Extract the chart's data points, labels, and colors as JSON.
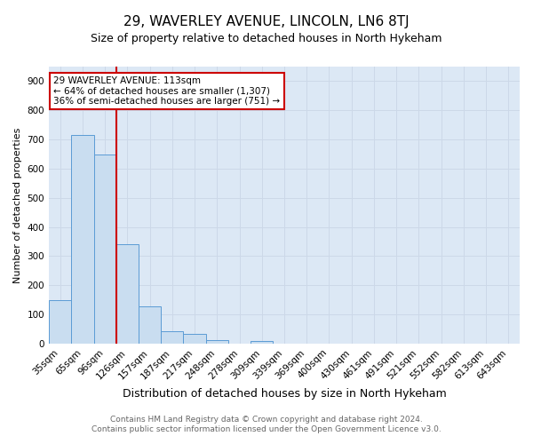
{
  "title1": "29, WAVERLEY AVENUE, LINCOLN, LN6 8TJ",
  "title2": "Size of property relative to detached houses in North Hykeham",
  "xlabel": "Distribution of detached houses by size in North Hykeham",
  "ylabel": "Number of detached properties",
  "categories": [
    "35sqm",
    "65sqm",
    "96sqm",
    "126sqm",
    "157sqm",
    "187sqm",
    "217sqm",
    "248sqm",
    "278sqm",
    "309sqm",
    "339sqm",
    "369sqm",
    "400sqm",
    "430sqm",
    "461sqm",
    "491sqm",
    "521sqm",
    "552sqm",
    "582sqm",
    "613sqm",
    "643sqm"
  ],
  "values": [
    150,
    715,
    650,
    340,
    128,
    42,
    32,
    12,
    0,
    10,
    0,
    0,
    0,
    0,
    0,
    0,
    0,
    0,
    0,
    0,
    0
  ],
  "bar_color": "#c9ddf0",
  "bar_edge_color": "#5b9bd5",
  "grid_color": "#ccd8e8",
  "background_color": "#dce8f5",
  "vline_color": "#cc0000",
  "annotation_text": "29 WAVERLEY AVENUE: 113sqm\n← 64% of detached houses are smaller (1,307)\n36% of semi-detached houses are larger (751) →",
  "annotation_box_color": "#ffffff",
  "annotation_border_color": "#cc0000",
  "footer1": "Contains HM Land Registry data © Crown copyright and database right 2024.",
  "footer2": "Contains public sector information licensed under the Open Government Licence v3.0.",
  "ylim": [
    0,
    950
  ],
  "yticks": [
    0,
    100,
    200,
    300,
    400,
    500,
    600,
    700,
    800,
    900
  ],
  "title1_fontsize": 11,
  "title2_fontsize": 9,
  "xlabel_fontsize": 9,
  "ylabel_fontsize": 8,
  "tick_fontsize": 7.5,
  "footer_fontsize": 6.5
}
